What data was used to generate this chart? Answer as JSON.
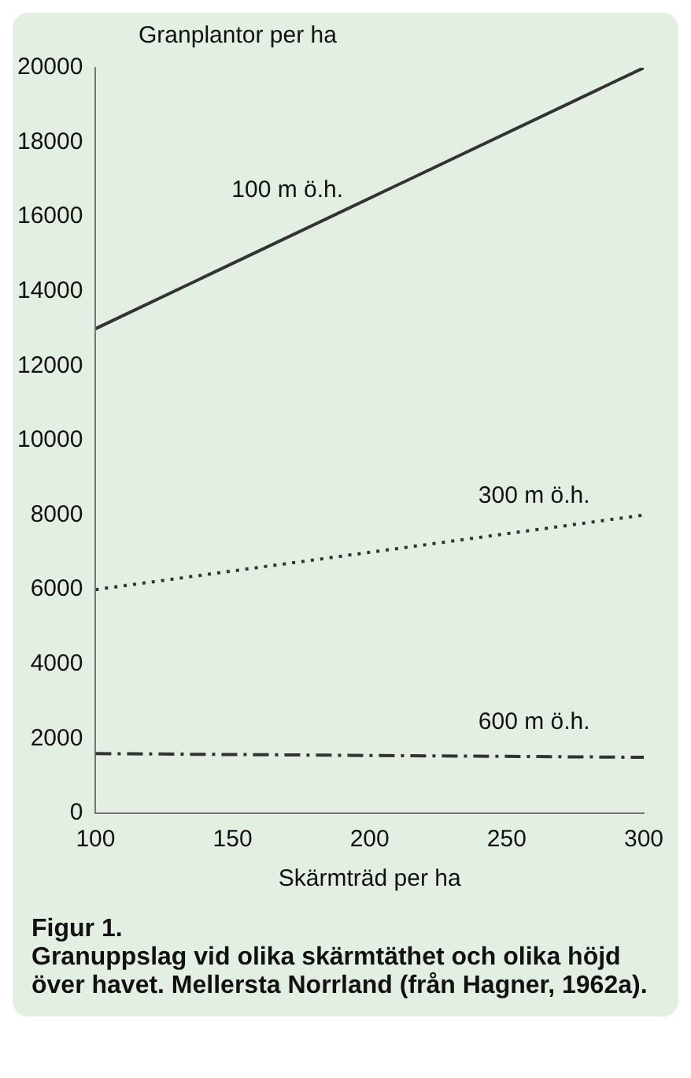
{
  "chart_data": {
    "type": "line",
    "title": "Figur 1.",
    "subtitle": "Granuppslag vid olika skärmtäthet och olika höjd över havet. Mellersta Norrland (från Hagner, 1962a).",
    "xlabel": "Skärmträd per ha",
    "ylabel": "Granplantor per ha",
    "xlim": [
      100,
      300
    ],
    "xticks": [
      100,
      150,
      200,
      250,
      300
    ],
    "ylim": [
      0,
      20000
    ],
    "yticks": [
      0,
      2000,
      4000,
      6000,
      8000,
      10000,
      12000,
      14000,
      16000,
      18000,
      20000
    ],
    "grid": false,
    "legend": false,
    "marker": "none",
    "x": [
      100,
      300
    ],
    "series": [
      {
        "name": "100 m ö.h.",
        "color": "#333333",
        "values": [
          13000,
          20000
        ],
        "line_style": "solid"
      },
      {
        "name": "300 m ö.h.",
        "color": "#333333",
        "values": [
          6000,
          8000
        ],
        "line_style": "dotted"
      },
      {
        "name": "600 m ö.h.",
        "color": "#333333",
        "values": [
          1600,
          1500
        ],
        "line_style": "dashed"
      }
    ]
  }
}
